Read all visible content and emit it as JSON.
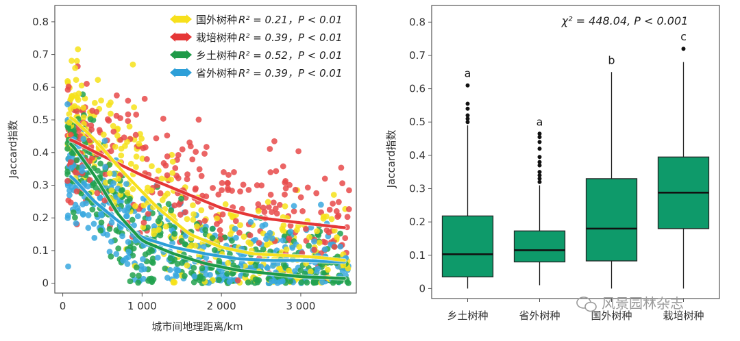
{
  "chart_data": [
    {
      "type": "scatter",
      "xlabel": "城市间地理距离/km",
      "ylabel": "Jaccard指数",
      "xlim": [
        -100,
        3700
      ],
      "ylim": [
        -0.03,
        0.85
      ],
      "xticks": [
        0,
        1000,
        2000,
        3000
      ],
      "xtick_labels": [
        "0",
        "1 000",
        "2 000",
        "3 000"
      ],
      "yticks": [
        0,
        0.1,
        0.2,
        0.3,
        0.4,
        0.5,
        0.6,
        0.7,
        0.8
      ],
      "ytick_labels": [
        "0",
        "0.1",
        "0.2",
        "0.3",
        "0.4",
        "0.5",
        "0.6",
        "0.7",
        "0.8"
      ],
      "legend_position": "top-right",
      "series": [
        {
          "name": "国外树种",
          "stat_label": "R² = 0.21，P < 0.01",
          "color": "#f6e21a",
          "trend": [
            [
              100,
              0.51
            ],
            [
              400,
              0.44
            ],
            [
              800,
              0.33
            ],
            [
              1200,
              0.23
            ],
            [
              1600,
              0.15
            ],
            [
              2000,
              0.11
            ],
            [
              2400,
              0.09
            ],
            [
              2800,
              0.085
            ],
            [
              3200,
              0.08
            ],
            [
              3550,
              0.07
            ]
          ]
        },
        {
          "name": "栽培树种",
          "stat_label": "R² = 0.39，P < 0.01",
          "color": "#e23a3a",
          "trend": [
            [
              100,
              0.44
            ],
            [
              500,
              0.39
            ],
            [
              1000,
              0.33
            ],
            [
              1500,
              0.28
            ],
            [
              2000,
              0.23
            ],
            [
              2500,
              0.2
            ],
            [
              3000,
              0.185
            ],
            [
              3550,
              0.17
            ]
          ]
        },
        {
          "name": "乡土树种",
          "stat_label": "R² = 0.52，P < 0.01",
          "color": "#1f9e4a",
          "trend": [
            [
              100,
              0.43
            ],
            [
              400,
              0.33
            ],
            [
              700,
              0.21
            ],
            [
              1000,
              0.13
            ],
            [
              1400,
              0.09
            ],
            [
              1800,
              0.06
            ],
            [
              2200,
              0.04
            ],
            [
              2600,
              0.03
            ],
            [
              3000,
              0.02
            ],
            [
              3550,
              0.015
            ]
          ]
        },
        {
          "name": "省外树种",
          "stat_label": "R² = 0.39，P < 0.01",
          "color": "#2a9fd6",
          "trend": [
            [
              100,
              0.33
            ],
            [
              400,
              0.25
            ],
            [
              700,
              0.19
            ],
            [
              1000,
              0.14
            ],
            [
              1400,
              0.11
            ],
            [
              1800,
              0.09
            ],
            [
              2200,
              0.075
            ],
            [
              2600,
              0.07
            ],
            [
              3000,
              0.07
            ],
            [
              3550,
              0.065
            ]
          ]
        }
      ]
    },
    {
      "type": "box",
      "ylabel": "Jaccard指数",
      "ylim": [
        -0.03,
        0.85
      ],
      "yticks": [
        0,
        0.1,
        0.2,
        0.3,
        0.4,
        0.5,
        0.6,
        0.7,
        0.8
      ],
      "ytick_labels": [
        "0",
        "0.1",
        "0.2",
        "0.3",
        "0.4",
        "0.5",
        "0.6",
        "0.7",
        "0.8"
      ],
      "annotation": "χ² = 448.04, P < 0.001",
      "box_color": "#0e9a6a",
      "categories": [
        "乡土树种",
        "省外树种",
        "国外树种",
        "栽培树种"
      ],
      "boxes": [
        {
          "category": "乡土树种",
          "min": 0.0,
          "q1": 0.035,
          "median": 0.103,
          "q3": 0.218,
          "max": 0.49,
          "letter": "a",
          "outliers": [
            0.5,
            0.51,
            0.52,
            0.54,
            0.555,
            0.61
          ]
        },
        {
          "category": "省外树种",
          "min": 0.01,
          "q1": 0.08,
          "median": 0.115,
          "q3": 0.173,
          "max": 0.31,
          "letter": "a",
          "outliers": [
            0.32,
            0.33,
            0.34,
            0.35,
            0.37,
            0.38,
            0.395,
            0.42,
            0.44,
            0.455,
            0.465
          ]
        },
        {
          "category": "国外树种",
          "min": 0.0,
          "q1": 0.083,
          "median": 0.18,
          "q3": 0.33,
          "max": 0.65,
          "letter": "b",
          "outliers": []
        },
        {
          "category": "栽培树种",
          "min": 0.0,
          "q1": 0.18,
          "median": 0.288,
          "q3": 0.395,
          "max": 0.68,
          "letter": "c",
          "outliers": [
            0.72
          ]
        }
      ]
    }
  ],
  "watermark": "风景园林杂志"
}
